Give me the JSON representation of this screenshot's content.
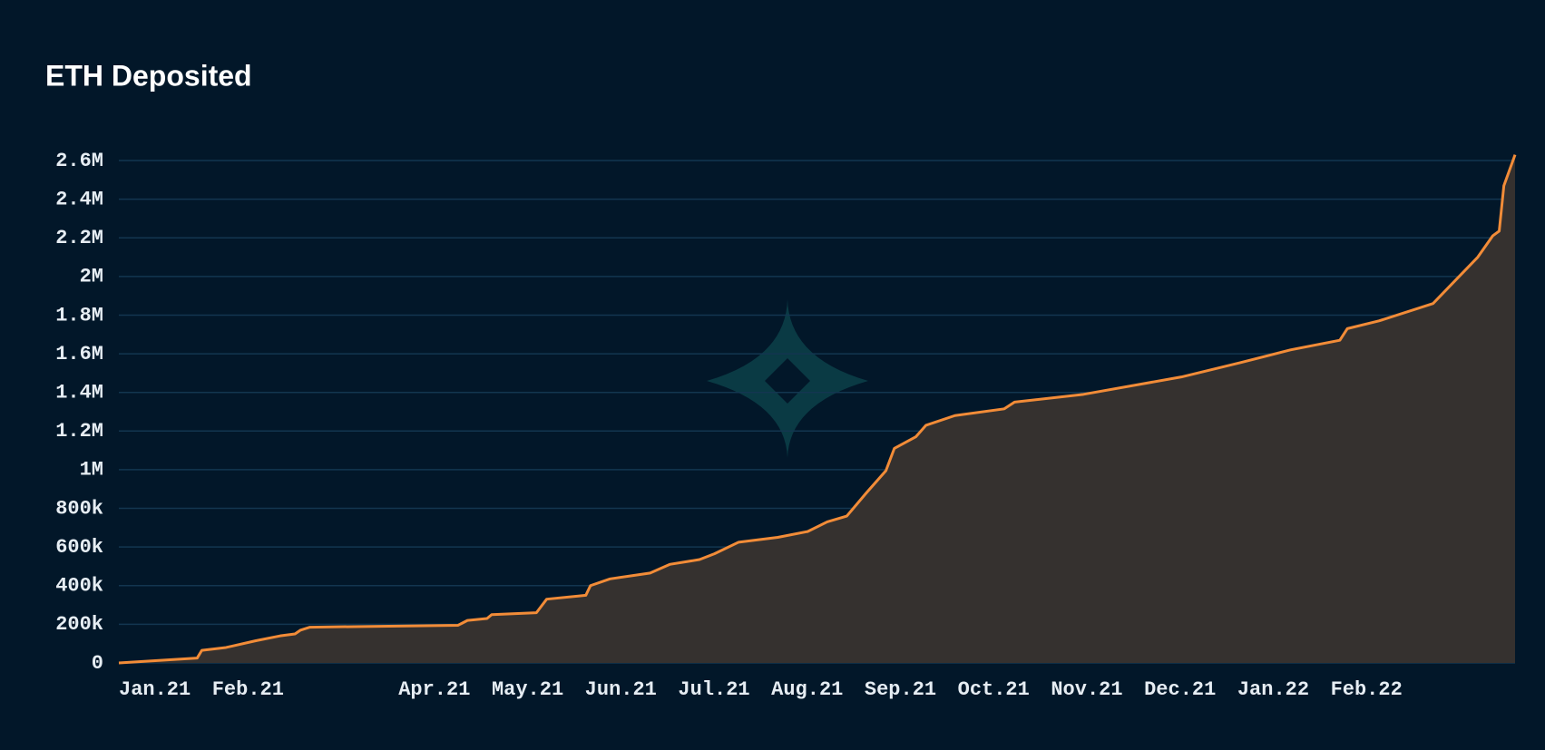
{
  "chart_data": {
    "type": "area",
    "title": "ETH Deposited",
    "x": [
      0,
      0.84,
      0.89,
      1.15,
      1.47,
      1.73,
      1.89,
      1.95,
      2.05,
      3.64,
      3.74,
      3.95,
      4.0,
      4.48,
      4.59,
      5.01,
      5.06,
      5.27,
      5.7,
      5.91,
      6.23,
      6.39,
      6.65,
      7.07,
      7.39,
      7.6,
      7.81,
      8.02,
      8.23,
      8.32,
      8.55,
      8.66,
      8.97,
      9.5,
      9.61,
      10.35,
      11.4,
      12.04,
      12.57,
      13.1,
      13.18,
      13.52,
      14.1,
      14.21,
      14.58,
      14.74,
      14.81,
      14.86,
      14.98
    ],
    "values": [
      0,
      25000,
      65000,
      80000,
      115000,
      140000,
      150000,
      170000,
      185000,
      195000,
      220000,
      230000,
      250000,
      260000,
      330000,
      350000,
      400000,
      435000,
      465000,
      510000,
      535000,
      565000,
      625000,
      650000,
      680000,
      730000,
      760000,
      880000,
      995000,
      1110000,
      1170000,
      1230000,
      1280000,
      1315000,
      1350000,
      1390000,
      1480000,
      1555000,
      1620000,
      1670000,
      1730000,
      1770000,
      1860000,
      1915000,
      2100000,
      2210000,
      2235000,
      2470000,
      2630000
    ],
    "line_color": "#f28c38",
    "fill_color": "#35312f",
    "xlim": [
      0,
      14.98
    ],
    "xticks": [
      {
        "value": 0,
        "label": "Jan.21"
      },
      {
        "value": 1,
        "label": "Feb.21"
      },
      {
        "value": 3,
        "label": "Apr.21"
      },
      {
        "value": 4,
        "label": "May.21"
      },
      {
        "value": 5,
        "label": "Jun.21"
      },
      {
        "value": 6,
        "label": "Jul.21"
      },
      {
        "value": 7,
        "label": "Aug.21"
      },
      {
        "value": 8,
        "label": "Sep.21"
      },
      {
        "value": 9,
        "label": "Oct.21"
      },
      {
        "value": 10,
        "label": "Nov.21"
      },
      {
        "value": 11,
        "label": "Dec.21"
      },
      {
        "value": 12,
        "label": "Jan.22"
      },
      {
        "value": 13,
        "label": "Feb.22"
      }
    ],
    "ylim": [
      0,
      2600000
    ],
    "yticks": [
      0,
      {
        "value": 200000,
        "label": "200k"
      },
      {
        "value": 400000,
        "label": "400k"
      },
      {
        "value": 600000,
        "label": "600k"
      },
      {
        "value": 800000,
        "label": "800k"
      },
      {
        "value": 1000000,
        "label": "1M"
      },
      {
        "value": 1200000,
        "label": "1.2M"
      },
      {
        "value": 1400000,
        "label": "1.4M"
      },
      {
        "value": 1600000,
        "label": "1.6M"
      },
      {
        "value": 1800000,
        "label": "1.8M"
      },
      {
        "value": 2000000,
        "label": "2M"
      },
      {
        "value": 2200000,
        "label": "2.2M"
      },
      {
        "value": 2400000,
        "label": "2.4M"
      },
      {
        "value": 2600000,
        "label": "2.6M"
      }
    ],
    "grid": true
  }
}
